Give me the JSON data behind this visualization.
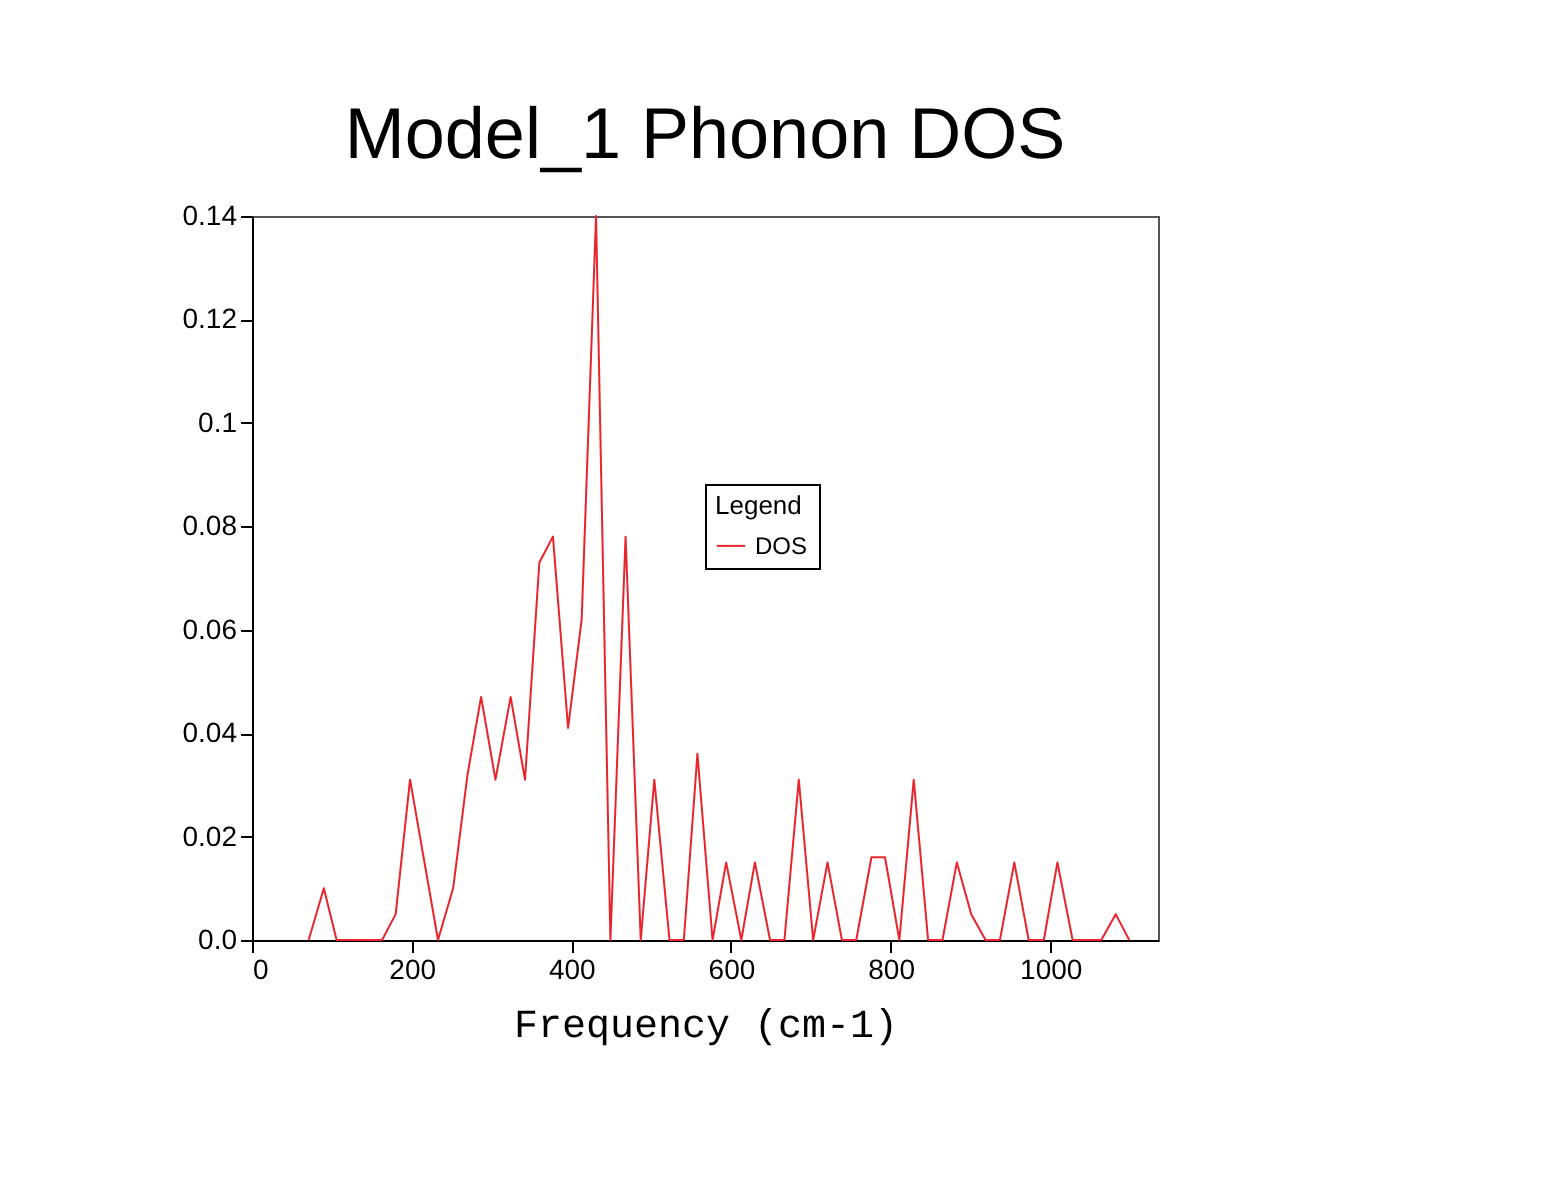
{
  "chart_data": {
    "type": "line",
    "title": "Model_1 Phonon DOS",
    "xlabel": "Frequency (cm-1)",
    "legend_title": "Legend",
    "x": [
      71,
      90,
      106,
      163,
      180,
      198,
      233,
      252,
      270,
      287,
      305,
      324,
      342,
      360,
      377,
      396,
      413,
      431,
      449,
      468,
      487,
      504,
      523,
      541,
      558,
      577,
      594,
      613,
      630,
      649,
      667,
      685,
      703,
      721,
      739,
      757,
      776,
      793,
      811,
      829,
      847,
      865,
      883,
      901,
      919,
      937,
      955,
      973,
      992,
      1009,
      1028,
      1046,
      1064,
      1082,
      1099
    ],
    "series": [
      {
        "name": "DOS",
        "color": "#e8242c",
        "values": [
          0,
          0.01,
          0,
          0,
          0.005,
          0.031,
          0,
          0.01,
          0.032,
          0.047,
          0.031,
          0.047,
          0.031,
          0.073,
          0.078,
          0.041,
          0.062,
          0.14,
          0,
          0.078,
          0,
          0.031,
          0,
          0,
          0.036,
          0,
          0.015,
          0,
          0.015,
          0,
          0,
          0.031,
          0,
          0.015,
          0,
          0,
          0.016,
          0.016,
          0,
          0.031,
          0,
          0,
          0.015,
          0.005,
          0,
          0,
          0.015,
          0,
          0,
          0.015,
          0,
          0,
          0,
          0.005,
          0
        ]
      }
    ],
    "xlim": [
      0,
      1135
    ],
    "xticks": [
      0,
      200,
      400,
      600,
      800,
      1000
    ],
    "ylim": [
      0,
      0.14
    ],
    "yticks": [
      {
        "value": 0,
        "label": "0.0"
      },
      0.02,
      0.04,
      0.06,
      0.08,
      0.1,
      0.12,
      0.14
    ],
    "grid": false,
    "legend": "center",
    "marker": "none",
    "line_style": "solid"
  }
}
